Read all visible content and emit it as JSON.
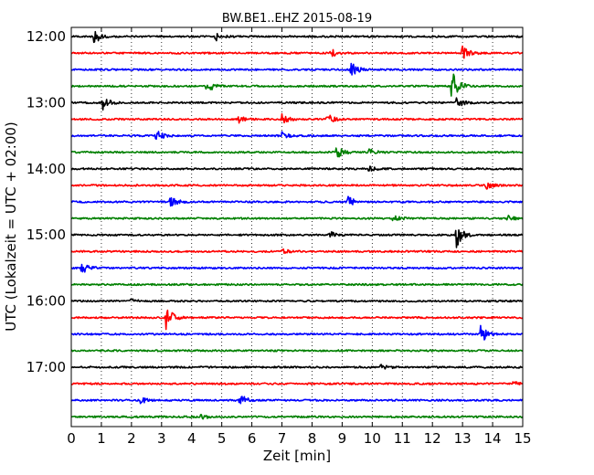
{
  "chart_data": {
    "type": "line",
    "title": "BW.BE1..EHZ 2015-08-19",
    "xlabel": "Zeit  [min]",
    "ylabel": "UTC (Lokalzeit = UTC + 02:00)",
    "xlim": [
      0,
      15
    ],
    "x_ticks": [
      "0",
      "1",
      "2",
      "3",
      "4",
      "5",
      "6",
      "7",
      "8",
      "9",
      "10",
      "11",
      "12",
      "13",
      "14",
      "15"
    ],
    "hour_labels": [
      "12:00",
      "13:00",
      "14:00",
      "15:00",
      "16:00",
      "17:00"
    ],
    "grid": "vertical dotted",
    "line_colors": [
      "#000000",
      "#ff0000",
      "#0000ff",
      "#008000"
    ],
    "rows_per_hour": 4,
    "minutes_per_row": 15,
    "traces": [
      {
        "start": "12:00",
        "color": "#000000",
        "events": [
          {
            "t": 0.75,
            "amp": 1.0
          },
          {
            "t": 4.8,
            "amp": 0.5
          }
        ]
      },
      {
        "start": "12:15",
        "color": "#ff0000",
        "events": [
          {
            "t": 8.6,
            "amp": 0.6
          },
          {
            "t": 13.0,
            "amp": 0.9
          }
        ]
      },
      {
        "start": "12:30",
        "color": "#0000ff",
        "events": [
          {
            "t": 9.3,
            "amp": 0.9
          }
        ]
      },
      {
        "start": "12:45",
        "color": "#008000",
        "events": [
          {
            "t": 4.5,
            "amp": 0.9
          },
          {
            "t": 12.6,
            "amp": 2.6
          }
        ]
      },
      {
        "start": "13:00",
        "color": "#000000",
        "events": [
          {
            "t": 1.05,
            "amp": 0.8
          },
          {
            "t": 12.8,
            "amp": 0.8
          }
        ]
      },
      {
        "start": "13:15",
        "color": "#ff0000",
        "events": [
          {
            "t": 5.5,
            "amp": 0.6
          },
          {
            "t": 7.0,
            "amp": 0.6
          },
          {
            "t": 8.5,
            "amp": 0.7
          }
        ]
      },
      {
        "start": "13:30",
        "color": "#0000ff",
        "events": [
          {
            "t": 2.8,
            "amp": 0.8
          },
          {
            "t": 7.0,
            "amp": 0.4
          }
        ]
      },
      {
        "start": "13:45",
        "color": "#008000",
        "events": [
          {
            "t": 8.8,
            "amp": 0.9
          },
          {
            "t": 9.9,
            "amp": 0.5
          }
        ]
      },
      {
        "start": "14:00",
        "color": "#000000",
        "events": [
          {
            "t": 9.9,
            "amp": 0.4
          }
        ]
      },
      {
        "start": "14:15",
        "color": "#ff0000",
        "events": [
          {
            "t": 13.8,
            "amp": 0.4
          }
        ]
      },
      {
        "start": "14:30",
        "color": "#0000ff",
        "events": [
          {
            "t": 3.3,
            "amp": 0.7
          },
          {
            "t": 9.2,
            "amp": 0.7
          }
        ]
      },
      {
        "start": "14:45",
        "color": "#008000",
        "events": [
          {
            "t": 10.7,
            "amp": 0.4
          },
          {
            "t": 14.5,
            "amp": 0.4
          }
        ]
      },
      {
        "start": "15:00",
        "color": "#000000",
        "events": [
          {
            "t": 12.8,
            "amp": 1.5
          },
          {
            "t": 8.6,
            "amp": 0.4
          }
        ]
      },
      {
        "start": "15:15",
        "color": "#ff0000",
        "events": [
          {
            "t": 7.0,
            "amp": 0.3
          }
        ]
      },
      {
        "start": "15:30",
        "color": "#0000ff",
        "events": [
          {
            "t": 0.35,
            "amp": 0.7
          }
        ]
      },
      {
        "start": "15:45",
        "color": "#008000",
        "events": []
      },
      {
        "start": "16:00",
        "color": "#000000",
        "events": [
          {
            "t": 2.0,
            "amp": 0.3
          }
        ]
      },
      {
        "start": "16:15",
        "color": "#ff0000",
        "events": [
          {
            "t": 3.15,
            "amp": 1.5
          }
        ]
      },
      {
        "start": "16:30",
        "color": "#0000ff",
        "events": [
          {
            "t": 13.6,
            "amp": 1.2
          }
        ]
      },
      {
        "start": "16:45",
        "color": "#008000",
        "events": []
      },
      {
        "start": "17:00",
        "color": "#000000",
        "events": [
          {
            "t": 10.3,
            "amp": 0.4
          }
        ]
      },
      {
        "start": "17:15",
        "color": "#ff0000",
        "events": [
          {
            "t": 14.6,
            "amp": 0.4
          }
        ]
      },
      {
        "start": "17:30",
        "color": "#0000ff",
        "events": [
          {
            "t": 5.6,
            "amp": 0.8
          },
          {
            "t": 2.3,
            "amp": 0.4
          }
        ]
      },
      {
        "start": "17:45",
        "color": "#008000",
        "events": [
          {
            "t": 4.3,
            "amp": 0.3
          }
        ]
      }
    ]
  }
}
